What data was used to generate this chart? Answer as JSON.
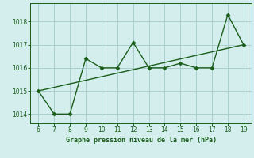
{
  "x": [
    6,
    7,
    8,
    9,
    10,
    11,
    12,
    13,
    14,
    15,
    16,
    17,
    18,
    19
  ],
  "y": [
    1015,
    1014,
    1014,
    1016.4,
    1016,
    1016,
    1017.1,
    1016,
    1016,
    1016.2,
    1016,
    1016,
    1018.3,
    1017
  ],
  "trend_x": [
    6,
    19
  ],
  "trend_y": [
    1015.0,
    1017.0
  ],
  "line_color": "#1a5e1a",
  "bg_color": "#d4eeee",
  "grid_color": "#aacece",
  "xlabel": "Graphe pression niveau de la mer (hPa)",
  "xlim": [
    5.5,
    19.5
  ],
  "ylim": [
    1013.6,
    1018.8
  ],
  "yticks": [
    1014,
    1015,
    1016,
    1017,
    1018
  ],
  "xticks": [
    6,
    7,
    8,
    9,
    10,
    11,
    12,
    13,
    14,
    15,
    16,
    17,
    18,
    19
  ],
  "marker": "D",
  "markersize": 2.5,
  "linewidth": 1.0
}
